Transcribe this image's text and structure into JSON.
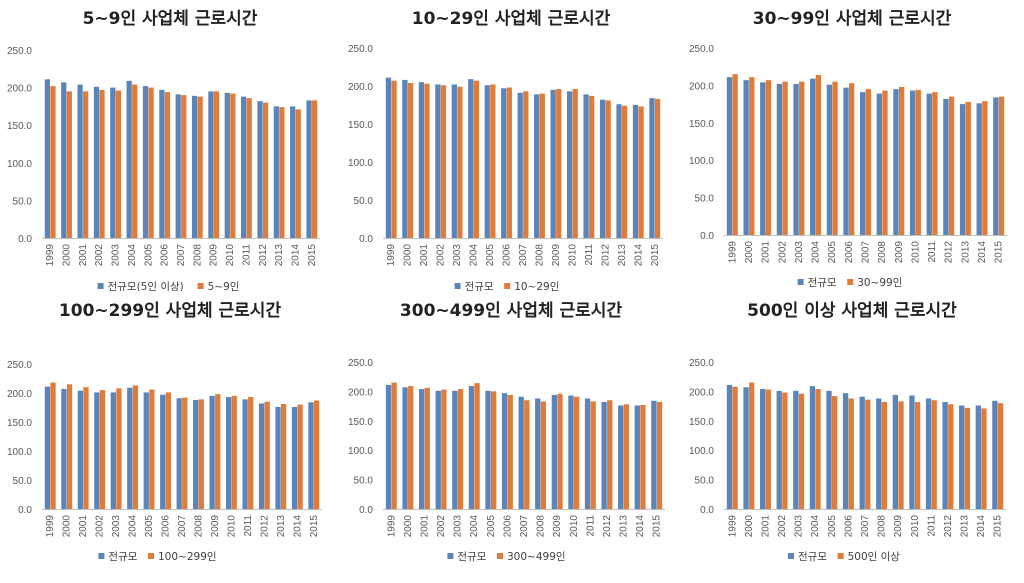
{
  "colors": {
    "blue": "#5b84b8",
    "orange": "#e07b39",
    "axis": "#bfbfbf",
    "text": "#595959"
  },
  "chart_data": [
    {
      "type": "bar",
      "title": "5~9인 사업체 근로시간",
      "categories": [
        "1999",
        "2000",
        "2001",
        "2002",
        "2003",
        "2004",
        "2005",
        "2006",
        "2007",
        "2008",
        "2009",
        "2010",
        "2011",
        "2012",
        "2013",
        "2014",
        "2015"
      ],
      "yticks": [
        "0.0",
        "50.0",
        "100.0",
        "150.0",
        "200.0",
        "250.0"
      ],
      "ylim": [
        0,
        250
      ],
      "xlabel": "",
      "ylabel": "",
      "legend_position": "bottom",
      "series": [
        {
          "name": "전규모(5인 이상)",
          "values": [
            211,
            207,
            204,
            201,
            200,
            209,
            202,
            197,
            191,
            189,
            195,
            193,
            188,
            182,
            175,
            175,
            183
          ]
        },
        {
          "name": "5~9인",
          "values": [
            202,
            195,
            195,
            197,
            196,
            204,
            200,
            194,
            190,
            188,
            195,
            192,
            186,
            180,
            174,
            171,
            183
          ]
        }
      ]
    },
    {
      "type": "bar",
      "title": "10~29인 사업체 근로시간",
      "categories": [
        "1999",
        "2000",
        "2001",
        "2002",
        "2003",
        "2004",
        "2005",
        "2006",
        "2007",
        "2008",
        "2009",
        "2010",
        "2011",
        "2012",
        "2013",
        "2014",
        "2015"
      ],
      "yticks": [
        "0.0",
        "50.0",
        "100.0",
        "150.0",
        "200.0",
        "250.0"
      ],
      "ylim": [
        0,
        250
      ],
      "xlabel": "",
      "ylabel": "",
      "legend_position": "bottom",
      "series": [
        {
          "name": "전규모",
          "values": [
            211,
            208,
            205,
            202,
            202,
            209,
            201,
            197,
            191,
            189,
            195,
            193,
            189,
            182,
            176,
            175,
            184
          ]
        },
        {
          "name": "10~29인",
          "values": [
            207,
            204,
            203,
            201,
            199,
            207,
            202,
            198,
            193,
            190,
            196,
            196,
            187,
            181,
            174,
            173,
            183
          ]
        }
      ]
    },
    {
      "type": "bar",
      "title": "30~99인 사업체 근로시간",
      "categories": [
        "1999",
        "2000",
        "2001",
        "2002",
        "2003",
        "2004",
        "2005",
        "2006",
        "2007",
        "2008",
        "2009",
        "2010",
        "2011",
        "2012",
        "2013",
        "2014",
        "2015"
      ],
      "yticks": [
        "0.0",
        "50.0",
        "100.0",
        "150.0",
        "200.0",
        "250.0"
      ],
      "ylim": [
        0,
        250
      ],
      "xlabel": "",
      "ylabel": "",
      "legend_position": "bottom",
      "series": [
        {
          "name": "전규모",
          "values": [
            211,
            207,
            204,
            202,
            202,
            209,
            201,
            197,
            191,
            189,
            195,
            193,
            189,
            182,
            175,
            176,
            184
          ]
        },
        {
          "name": "30~99인",
          "values": [
            215,
            211,
            207,
            205,
            205,
            214,
            205,
            203,
            195,
            193,
            198,
            194,
            191,
            185,
            178,
            179,
            185
          ]
        }
      ]
    },
    {
      "type": "bar",
      "title": "100~299인 사업체 근로시간",
      "categories": [
        "1999",
        "2000",
        "2001",
        "2002",
        "2003",
        "2004",
        "2005",
        "2006",
        "2007",
        "2008",
        "2009",
        "2010",
        "2011",
        "2012",
        "2013",
        "2014",
        "2015"
      ],
      "yticks": [
        "0.0",
        "50.0",
        "100.0",
        "150.0",
        "200.0",
        "250.0"
      ],
      "ylim": [
        0,
        250
      ],
      "xlabel": "",
      "ylabel": "",
      "legend_position": "bottom",
      "series": [
        {
          "name": "전규모",
          "values": [
            211,
            207,
            204,
            201,
            201,
            209,
            201,
            197,
            191,
            188,
            195,
            193,
            189,
            182,
            176,
            176,
            184
          ]
        },
        {
          "name": "100~299인",
          "values": [
            218,
            215,
            210,
            205,
            208,
            213,
            206,
            201,
            192,
            189,
            198,
            195,
            193,
            185,
            181,
            180,
            187
          ]
        }
      ]
    },
    {
      "type": "bar",
      "title": "300~499인 사업체 근로시간",
      "categories": [
        "1999",
        "2000",
        "2001",
        "2002",
        "2003",
        "2004",
        "2005",
        "2006",
        "2007",
        "2008",
        "2009",
        "2010",
        "2011",
        "2012",
        "2013",
        "2014",
        "2015"
      ],
      "yticks": [
        "0.0",
        "50.0",
        "100.0",
        "150.0",
        "200.0",
        "250.0"
      ],
      "ylim": [
        0,
        250
      ],
      "xlabel": "",
      "ylabel": "",
      "legend_position": "bottom",
      "series": [
        {
          "name": "전규모",
          "values": [
            211,
            207,
            204,
            201,
            201,
            209,
            201,
            197,
            191,
            188,
            194,
            193,
            188,
            182,
            176,
            176,
            184
          ]
        },
        {
          "name": "300~499인",
          "values": [
            215,
            209,
            206,
            203,
            204,
            214,
            200,
            194,
            185,
            183,
            196,
            191,
            183,
            185,
            178,
            177,
            182
          ]
        }
      ]
    },
    {
      "type": "bar",
      "title": "500인 이상 사업체 근로시간",
      "categories": [
        "1999",
        "2000",
        "2001",
        "2002",
        "2003",
        "2004",
        "2005",
        "2006",
        "2007",
        "2008",
        "2009",
        "2010",
        "2011",
        "2012",
        "2013",
        "2014",
        "2015"
      ],
      "yticks": [
        "0.0",
        "50.0",
        "100.0",
        "150.0",
        "200.0",
        "250.0"
      ],
      "ylim": [
        0,
        250
      ],
      "xlabel": "",
      "ylabel": "",
      "legend_position": "bottom",
      "series": [
        {
          "name": "전규모",
          "values": [
            211,
            207,
            204,
            201,
            201,
            209,
            201,
            197,
            191,
            188,
            194,
            193,
            188,
            182,
            176,
            176,
            184
          ]
        },
        {
          "name": "500인 이상",
          "values": [
            208,
            215,
            203,
            198,
            196,
            204,
            192,
            188,
            186,
            182,
            183,
            182,
            185,
            178,
            172,
            171,
            180
          ]
        }
      ]
    }
  ]
}
